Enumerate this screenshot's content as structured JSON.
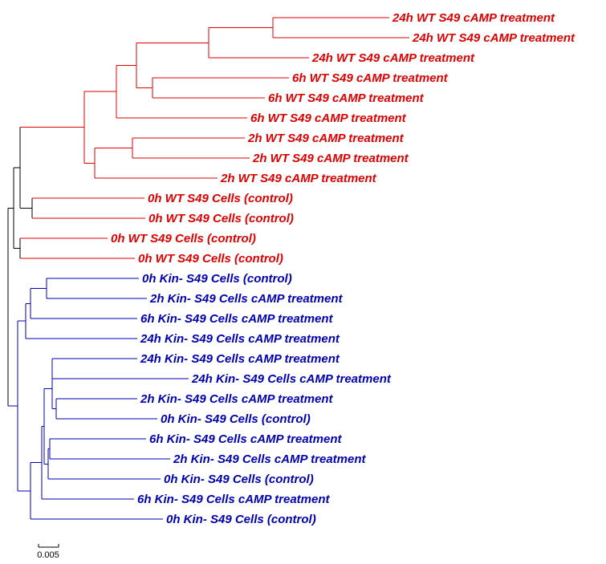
{
  "colors": {
    "red": "#e00000",
    "blue": "#0000b4",
    "black": "#000000"
  },
  "scale_bar": {
    "label": "0.005"
  },
  "leaves": [
    {
      "label": "24h WT S49 cAMP treatment",
      "color": "red"
    },
    {
      "label": "24h WT S49 cAMP treatment",
      "color": "red"
    },
    {
      "label": "24h WT S49 cAMP treatment",
      "color": "red"
    },
    {
      "label": "6h WT S49 cAMP treatment",
      "color": "red"
    },
    {
      "label": "6h WT S49 cAMP treatment",
      "color": "red"
    },
    {
      "label": "6h WT S49 cAMP treatment",
      "color": "red"
    },
    {
      "label": "2h WT S49 cAMP treatment",
      "color": "red"
    },
    {
      "label": "2h WT S49 cAMP treatment",
      "color": "red"
    },
    {
      "label": "2h WT S49 cAMP treatment",
      "color": "red"
    },
    {
      "label": "0h WT S49 Cells (control)",
      "color": "red"
    },
    {
      "label": "0h WT S49 Cells (control)",
      "color": "red"
    },
    {
      "label": "0h WT S49 Cells (control)",
      "color": "red"
    },
    {
      "label": "0h WT S49 Cells (control)",
      "color": "red"
    },
    {
      "label": "0h Kin- S49 Cells (control)",
      "color": "blue"
    },
    {
      "label": "2h Kin- S49 Cells cAMP treatment",
      "color": "blue"
    },
    {
      "label": "6h Kin- S49 Cells cAMP treatment",
      "color": "blue"
    },
    {
      "label": "24h Kin- S49 Cells cAMP treatment",
      "color": "blue"
    },
    {
      "label": "24h Kin- S49 Cells cAMP treatment",
      "color": "blue"
    },
    {
      "label": "24h Kin- S49 Cells cAMP treatment",
      "color": "blue"
    },
    {
      "label": "2h Kin- S49 Cells cAMP treatment",
      "color": "blue"
    },
    {
      "label": "0h Kin- S49 Cells (control)",
      "color": "blue"
    },
    {
      "label": "6h Kin- S49 Cells cAMP treatment",
      "color": "blue"
    },
    {
      "label": "2h Kin- S49 Cells cAMP treatment",
      "color": "blue"
    },
    {
      "label": "0h Kin- S49 Cells (control)",
      "color": "blue"
    },
    {
      "label": "6h Kin- S49 Cells cAMP treatment",
      "color": "blue"
    },
    {
      "label": "0h Kin- S49 Cells (control)",
      "color": "blue"
    }
  ]
}
